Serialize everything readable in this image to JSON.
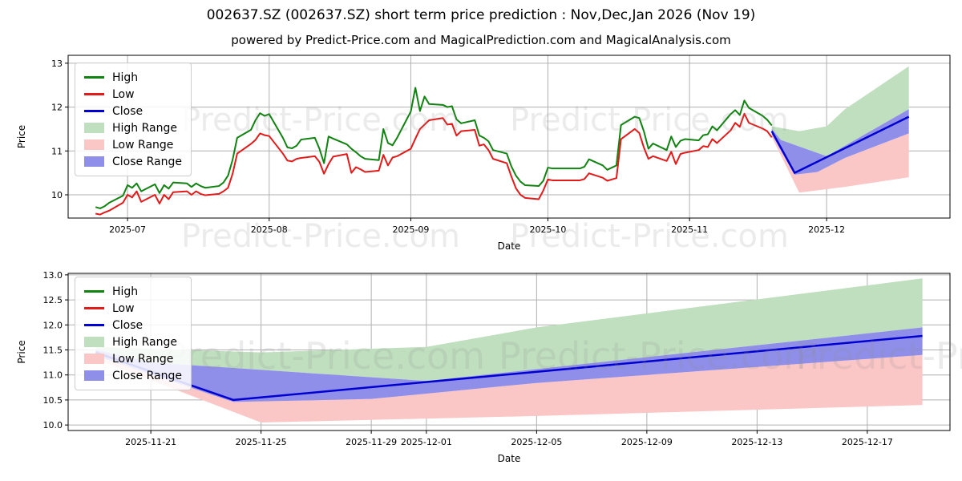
{
  "figure": {
    "title": "002637.SZ (002637.SZ) short term price prediction : Nov,Dec,Jan 2026 (Nov 19)",
    "subtitle": "powered by Predict-Price.com and MagicalPrediction.com and MagicalAnalysis.com"
  },
  "watermark": {
    "text": "Predict-Price.com"
  },
  "colors": {
    "high": "#108310",
    "low": "#e31a1a",
    "close": "#0000d0",
    "high_range": "#bfdfbf",
    "low_range": "#fbc6c6",
    "close_range": "#8f8fea",
    "grid": "#b0b0b0",
    "axis": "#000000",
    "text": "#000000"
  },
  "legend": {
    "items": [
      {
        "label": "High",
        "type": "line",
        "color": "high"
      },
      {
        "label": "Low",
        "type": "line",
        "color": "low"
      },
      {
        "label": "Close",
        "type": "line",
        "color": "close"
      },
      {
        "label": "High Range",
        "type": "patch",
        "color": "high_range"
      },
      {
        "label": "Low Range",
        "type": "patch",
        "color": "low_range"
      },
      {
        "label": "Close Range",
        "type": "patch",
        "color": "close_range"
      }
    ]
  },
  "chart_data": [
    {
      "type": "line",
      "name": "price-history-with-prediction-chart",
      "xlabel": "Date",
      "ylabel": "Price",
      "grid": true,
      "legend_position": "upper left",
      "xlim": [
        "2025-06-18",
        "2025-12-28"
      ],
      "ylim": [
        9.47,
        13.18
      ],
      "xticks": [
        {
          "label": "2025-07",
          "date": "2025-07-01"
        },
        {
          "label": "2025-08",
          "date": "2025-08-01"
        },
        {
          "label": "2025-09",
          "date": "2025-09-01"
        },
        {
          "label": "2025-10",
          "date": "2025-10-01"
        },
        {
          "label": "2025-11",
          "date": "2025-11-01"
        },
        {
          "label": "2025-12",
          "date": "2025-12-01"
        }
      ],
      "yticks": [
        {
          "label": "10",
          "value": 10
        },
        {
          "label": "11",
          "value": 11
        },
        {
          "label": "12",
          "value": 12
        },
        {
          "label": "13",
          "value": 13
        }
      ],
      "history_columns": [
        "date",
        "high",
        "low"
      ],
      "history": [
        [
          "2025-06-24",
          9.72,
          9.57
        ],
        [
          "2025-06-25",
          9.69,
          9.55
        ],
        [
          "2025-06-26",
          9.74,
          9.6
        ],
        [
          "2025-06-27",
          9.82,
          9.64
        ],
        [
          "2025-06-30",
          9.98,
          9.82
        ],
        [
          "2025-07-01",
          10.22,
          10.0
        ],
        [
          "2025-07-02",
          10.16,
          9.94
        ],
        [
          "2025-07-03",
          10.26,
          10.08
        ],
        [
          "2025-07-04",
          10.08,
          9.84
        ],
        [
          "2025-07-07",
          10.24,
          10.0
        ],
        [
          "2025-07-08",
          10.04,
          9.8
        ],
        [
          "2025-07-09",
          10.22,
          10.0
        ],
        [
          "2025-07-10",
          10.14,
          9.9
        ],
        [
          "2025-07-11",
          10.28,
          10.06
        ],
        [
          "2025-07-14",
          10.26,
          10.08
        ],
        [
          "2025-07-15",
          10.18,
          10.0
        ],
        [
          "2025-07-16",
          10.26,
          10.08
        ],
        [
          "2025-07-17",
          10.2,
          10.02
        ],
        [
          "2025-07-18",
          10.16,
          9.99
        ],
        [
          "2025-07-21",
          10.2,
          10.02
        ],
        [
          "2025-07-22",
          10.28,
          10.08
        ],
        [
          "2025-07-23",
          10.44,
          10.16
        ],
        [
          "2025-07-24",
          10.8,
          10.48
        ],
        [
          "2025-07-25",
          11.3,
          10.94
        ],
        [
          "2025-07-28",
          11.48,
          11.16
        ],
        [
          "2025-07-29",
          11.7,
          11.25
        ],
        [
          "2025-07-30",
          11.86,
          11.4
        ],
        [
          "2025-07-31",
          11.8,
          11.36
        ],
        [
          "2025-08-01",
          11.84,
          11.34
        ],
        [
          "2025-08-04",
          11.3,
          10.94
        ],
        [
          "2025-08-05",
          11.08,
          10.78
        ],
        [
          "2025-08-06",
          11.06,
          10.76
        ],
        [
          "2025-08-07",
          11.12,
          10.82
        ],
        [
          "2025-08-08",
          11.26,
          10.84
        ],
        [
          "2025-08-11",
          11.3,
          10.88
        ],
        [
          "2025-08-12",
          11.05,
          10.75
        ],
        [
          "2025-08-13",
          10.72,
          10.48
        ],
        [
          "2025-08-14",
          11.33,
          10.7
        ],
        [
          "2025-08-15",
          11.28,
          10.87
        ],
        [
          "2025-08-18",
          11.15,
          10.93
        ],
        [
          "2025-08-19",
          11.05,
          10.5
        ],
        [
          "2025-08-20",
          10.97,
          10.63
        ],
        [
          "2025-08-21",
          10.88,
          10.58
        ],
        [
          "2025-08-22",
          10.82,
          10.52
        ],
        [
          "2025-08-25",
          10.79,
          10.55
        ],
        [
          "2025-08-26",
          11.5,
          10.91
        ],
        [
          "2025-08-27",
          11.18,
          10.67
        ],
        [
          "2025-08-28",
          11.13,
          10.85
        ],
        [
          "2025-08-29",
          11.3,
          10.88
        ],
        [
          "2025-09-01",
          11.9,
          11.05
        ],
        [
          "2025-09-02",
          12.44,
          11.28
        ],
        [
          "2025-09-03",
          11.91,
          11.5
        ],
        [
          "2025-09-04",
          12.24,
          11.6
        ],
        [
          "2025-09-05",
          12.07,
          11.7
        ],
        [
          "2025-09-08",
          12.05,
          11.75
        ],
        [
          "2025-09-09",
          12.0,
          11.6
        ],
        [
          "2025-09-10",
          12.02,
          11.62
        ],
        [
          "2025-09-11",
          11.72,
          11.35
        ],
        [
          "2025-09-12",
          11.63,
          11.45
        ],
        [
          "2025-09-15",
          11.7,
          11.48
        ],
        [
          "2025-09-16",
          11.35,
          11.12
        ],
        [
          "2025-09-17",
          11.3,
          11.15
        ],
        [
          "2025-09-18",
          11.22,
          11.02
        ],
        [
          "2025-09-19",
          11.02,
          10.82
        ],
        [
          "2025-09-22",
          10.94,
          10.72
        ],
        [
          "2025-09-23",
          10.65,
          10.42
        ],
        [
          "2025-09-24",
          10.44,
          10.15
        ],
        [
          "2025-09-25",
          10.3,
          10.0
        ],
        [
          "2025-09-26",
          10.22,
          9.93
        ],
        [
          "2025-09-29",
          10.2,
          9.9
        ],
        [
          "2025-09-30",
          10.32,
          10.1
        ],
        [
          "2025-10-01",
          10.62,
          10.35
        ],
        [
          "2025-10-02",
          10.6,
          10.33
        ],
        [
          "2025-10-06",
          10.6,
          10.33
        ],
        [
          "2025-10-08",
          10.6,
          10.33
        ],
        [
          "2025-10-09",
          10.64,
          10.36
        ],
        [
          "2025-10-10",
          10.81,
          10.49
        ],
        [
          "2025-10-13",
          10.67,
          10.39
        ],
        [
          "2025-10-14",
          10.57,
          10.32
        ],
        [
          "2025-10-15",
          10.62,
          10.35
        ],
        [
          "2025-10-16",
          10.67,
          10.38
        ],
        [
          "2025-10-17",
          11.59,
          11.27
        ],
        [
          "2025-10-20",
          11.78,
          11.5
        ],
        [
          "2025-10-21",
          11.75,
          11.41
        ],
        [
          "2025-10-22",
          11.45,
          11.08
        ],
        [
          "2025-10-23",
          11.05,
          10.82
        ],
        [
          "2025-10-24",
          11.17,
          10.88
        ],
        [
          "2025-10-27",
          11.02,
          10.77
        ],
        [
          "2025-10-28",
          11.33,
          10.98
        ],
        [
          "2025-10-29",
          11.09,
          10.7
        ],
        [
          "2025-10-30",
          11.23,
          10.93
        ],
        [
          "2025-10-31",
          11.27,
          10.96
        ],
        [
          "2025-11-03",
          11.24,
          11.02
        ],
        [
          "2025-11-04",
          11.36,
          11.11
        ],
        [
          "2025-11-05",
          11.38,
          11.09
        ],
        [
          "2025-11-06",
          11.56,
          11.27
        ],
        [
          "2025-11-07",
          11.47,
          11.18
        ],
        [
          "2025-11-10",
          11.84,
          11.47
        ],
        [
          "2025-11-11",
          11.93,
          11.64
        ],
        [
          "2025-11-12",
          11.82,
          11.55
        ],
        [
          "2025-11-13",
          12.15,
          11.85
        ],
        [
          "2025-11-14",
          11.98,
          11.64
        ],
        [
          "2025-11-17",
          11.8,
          11.51
        ],
        [
          "2025-11-18",
          11.71,
          11.45
        ],
        [
          "2025-11-19",
          11.58,
          11.31
        ]
      ],
      "pred": {
        "close_line": [
          [
            "2025-11-19",
            11.45
          ],
          [
            "2025-11-24",
            10.5
          ],
          [
            "2025-12-19",
            11.78
          ]
        ],
        "high_range_upper": [
          [
            "2025-11-19",
            11.56
          ],
          [
            "2025-11-25",
            11.45
          ],
          [
            "2025-12-01",
            11.56
          ],
          [
            "2025-12-05",
            11.95
          ],
          [
            "2025-12-19",
            12.93
          ]
        ],
        "high_range_lower": [
          [
            "2025-11-19",
            11.5
          ],
          [
            "2025-11-21",
            11.25
          ],
          [
            "2025-12-01",
            10.88
          ],
          [
            "2025-12-19",
            11.95
          ]
        ],
        "close_range_lower": [
          [
            "2025-11-19",
            11.38
          ],
          [
            "2025-11-24",
            10.46
          ],
          [
            "2025-11-29",
            10.52
          ],
          [
            "2025-12-05",
            10.84
          ],
          [
            "2025-12-19",
            11.4
          ]
        ],
        "low_range_lower": [
          [
            "2025-11-19",
            11.32
          ],
          [
            "2025-11-25",
            10.05
          ],
          [
            "2025-12-05",
            10.18
          ],
          [
            "2025-12-19",
            10.4
          ]
        ]
      },
      "bands": [
        {
          "name": "high-range-area",
          "color": "high_range",
          "upper": "high_range_upper",
          "lower": "high_range_lower"
        },
        {
          "name": "low-range-area",
          "color": "low_range",
          "upper": "close_range_lower",
          "lower": "low_range_lower"
        },
        {
          "name": "close-range-area",
          "color": "close_range",
          "upper": "high_range_lower",
          "lower": "close_range_lower"
        }
      ],
      "lines": [
        {
          "name": "high-line",
          "color": "high",
          "source": "history",
          "column": 1,
          "width": 2
        },
        {
          "name": "low-line",
          "color": "low",
          "source": "history",
          "column": 2,
          "width": 2
        },
        {
          "name": "close-line",
          "color": "close",
          "source": "close_line",
          "width": 2.5
        }
      ]
    },
    {
      "type": "line",
      "name": "prediction-detail-chart",
      "xlabel": "Date",
      "ylabel": "Price",
      "grid": true,
      "legend_position": "upper left",
      "xlim": [
        "2025-11-18",
        "2025-12-20"
      ],
      "ylim": [
        9.89,
        13.03
      ],
      "xticks": [
        {
          "label": "2025-11-21",
          "date": "2025-11-21"
        },
        {
          "label": "2025-11-25",
          "date": "2025-11-25"
        },
        {
          "label": "2025-11-29",
          "date": "2025-11-29"
        },
        {
          "label": "2025-12-01",
          "date": "2025-12-01"
        },
        {
          "label": "2025-12-05",
          "date": "2025-12-05"
        },
        {
          "label": "2025-12-09",
          "date": "2025-12-09"
        },
        {
          "label": "2025-12-13",
          "date": "2025-12-13"
        },
        {
          "label": "2025-12-17",
          "date": "2025-12-17"
        }
      ],
      "yticks": [
        {
          "label": "10.0",
          "value": 10.0
        },
        {
          "label": "10.5",
          "value": 10.5
        },
        {
          "label": "11.0",
          "value": 11.0
        },
        {
          "label": "11.5",
          "value": 11.5
        },
        {
          "label": "12.0",
          "value": 12.0
        },
        {
          "label": "12.5",
          "value": 12.5
        },
        {
          "label": "13.0",
          "value": 13.0
        }
      ],
      "history_columns": [
        "date",
        "high",
        "low"
      ],
      "history": [],
      "pred": {
        "close_line": [
          [
            "2025-11-19",
            11.45
          ],
          [
            "2025-11-24",
            10.5
          ],
          [
            "2025-12-19",
            11.78
          ]
        ],
        "high_range_upper": [
          [
            "2025-11-19",
            11.56
          ],
          [
            "2025-11-25",
            11.45
          ],
          [
            "2025-12-01",
            11.56
          ],
          [
            "2025-12-05",
            11.95
          ],
          [
            "2025-12-19",
            12.93
          ]
        ],
        "high_range_lower": [
          [
            "2025-11-19",
            11.5
          ],
          [
            "2025-11-21",
            11.25
          ],
          [
            "2025-12-01",
            10.88
          ],
          [
            "2025-12-19",
            11.95
          ]
        ],
        "close_range_lower": [
          [
            "2025-11-19",
            11.38
          ],
          [
            "2025-11-24",
            10.46
          ],
          [
            "2025-11-29",
            10.52
          ],
          [
            "2025-12-05",
            10.84
          ],
          [
            "2025-12-19",
            11.4
          ]
        ],
        "low_range_lower": [
          [
            "2025-11-19",
            11.32
          ],
          [
            "2025-11-25",
            10.05
          ],
          [
            "2025-12-05",
            10.18
          ],
          [
            "2025-12-19",
            10.4
          ]
        ]
      },
      "bands": [
        {
          "name": "high-range-area",
          "color": "high_range",
          "upper": "high_range_upper",
          "lower": "high_range_lower"
        },
        {
          "name": "low-range-area",
          "color": "low_range",
          "upper": "close_range_lower",
          "lower": "low_range_lower"
        },
        {
          "name": "close-range-area",
          "color": "close_range",
          "upper": "high_range_lower",
          "lower": "close_range_lower"
        }
      ],
      "lines": [
        {
          "name": "close-line",
          "color": "close",
          "source": "close_line",
          "width": 2.5
        }
      ]
    }
  ]
}
